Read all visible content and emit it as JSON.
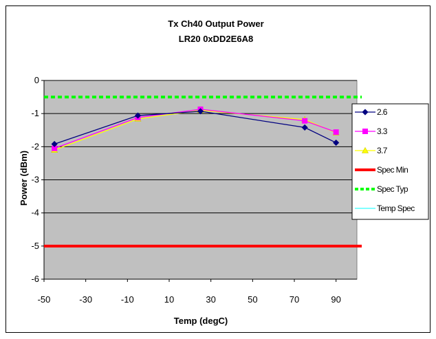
{
  "chart_data": {
    "type": "line",
    "title": "Tx Ch40 Output Power",
    "subtitle": "LR20 0xDD2E6A8",
    "xlabel": "Temp (degC)",
    "ylabel": "Power (dBm)",
    "xlim": [
      -50,
      100
    ],
    "ylim": [
      -6,
      0
    ],
    "xticks": [
      -50,
      -30,
      -10,
      10,
      30,
      50,
      70,
      90
    ],
    "yticks": [
      0,
      -1,
      -2,
      -3,
      -4,
      -5,
      -6
    ],
    "plot_background": "#c0c0c0",
    "grid": "horizontal",
    "legend_position": "right",
    "series": [
      {
        "name": "2.6",
        "color": "#000080",
        "marker": "diamond",
        "x": [
          -45,
          -5,
          25,
          75,
          90
        ],
        "y": [
          -1.92,
          -1.06,
          -0.93,
          -1.42,
          -1.88
        ]
      },
      {
        "name": "3.3",
        "color": "#ff00ff",
        "marker": "square",
        "x": [
          -45,
          -5,
          25,
          75,
          90
        ],
        "y": [
          -2.05,
          -1.12,
          -0.87,
          -1.22,
          -1.56
        ]
      },
      {
        "name": "3.7",
        "color": "#ffff00",
        "marker": "triangle",
        "x": [
          -45,
          -5,
          25,
          75,
          90
        ],
        "y": [
          -2.1,
          -1.16,
          -0.9,
          -1.18,
          -1.58
        ]
      }
    ],
    "reference_lines": [
      {
        "name": "Spec Min",
        "color": "#ff0000",
        "style": "solid",
        "y": -5
      },
      {
        "name": "Spec Typ",
        "color": "#00ff00",
        "style": "dotted",
        "y": -0.5
      }
    ],
    "legend": [
      {
        "label": "2.6",
        "color": "#000080",
        "line": "solid",
        "marker": "diamond"
      },
      {
        "label": "3.3",
        "color": "#ff00ff",
        "line": "solid",
        "marker": "square"
      },
      {
        "label": "3.7",
        "color": "#ffff00",
        "line": "solid",
        "marker": "triangle"
      },
      {
        "label": "Spec Min",
        "color": "#ff0000",
        "line": "thick",
        "marker": "none"
      },
      {
        "label": "Spec Typ",
        "color": "#00ff00",
        "line": "dotted",
        "marker": "none"
      },
      {
        "label": "Temp Spec",
        "color": "#00ffff",
        "line": "thin",
        "marker": "none"
      }
    ]
  }
}
